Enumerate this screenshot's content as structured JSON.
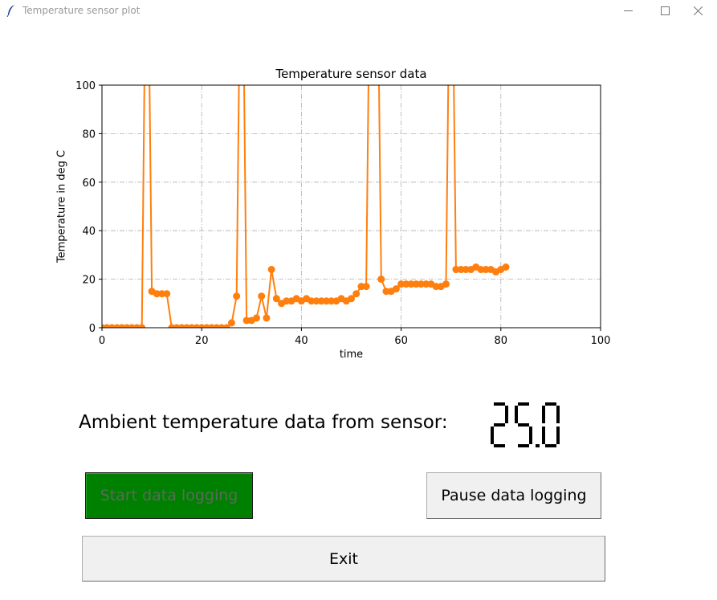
{
  "window": {
    "title": "Temperature sensor plot"
  },
  "chart_data": {
    "type": "line",
    "title": "Temperature sensor data",
    "xlabel": "time",
    "ylabel": "Temperature in deg C",
    "xlim": [
      0,
      100
    ],
    "ylim": [
      0,
      100
    ],
    "xticks": [
      "0",
      "20",
      "40",
      "60",
      "80",
      "100"
    ],
    "yticks": [
      "0",
      "20",
      "40",
      "60",
      "80",
      "100"
    ],
    "grid": true,
    "color": "#ff7f0e",
    "marker": "circle",
    "series": [
      {
        "x": [
          0,
          1,
          2,
          3,
          4,
          5,
          6,
          7,
          8,
          9,
          10,
          11,
          12,
          13,
          14,
          15,
          16,
          17,
          18,
          19,
          20,
          21,
          22,
          23,
          24,
          25,
          26,
          27,
          28,
          29,
          30,
          31,
          32,
          33,
          34,
          35,
          36,
          37,
          38,
          39,
          40,
          41,
          42,
          43,
          44,
          45,
          46,
          47,
          48,
          49,
          50,
          51,
          52,
          53,
          54,
          55,
          56,
          57,
          58,
          59,
          60,
          61,
          62,
          63,
          64,
          65,
          66,
          67,
          68,
          69,
          70,
          71,
          72,
          73,
          74,
          75,
          76,
          77,
          78,
          79,
          80,
          81
        ],
        "values": [
          0,
          0,
          0,
          0,
          0,
          0,
          0,
          0,
          0,
          200,
          15,
          14,
          14,
          14,
          0,
          0,
          0,
          0,
          0,
          0,
          0,
          0,
          0,
          0,
          0,
          0,
          2,
          13,
          200,
          3,
          3,
          4,
          13,
          4,
          24,
          12,
          10,
          11,
          11,
          12,
          11,
          12,
          11,
          11,
          11,
          11,
          11,
          11,
          12,
          11,
          12,
          14,
          17,
          17,
          200,
          200,
          20,
          15,
          15,
          16,
          18,
          18,
          18,
          18,
          18,
          18,
          18,
          17,
          17,
          18,
          200,
          24,
          24,
          24,
          24,
          25,
          24,
          24,
          24,
          23,
          24,
          25
        ]
      }
    ]
  },
  "ambient": {
    "label": "Ambient temperature data from sensor:",
    "value": "25.0"
  },
  "buttons": {
    "start": "Start data logging",
    "pause": "Pause data logging",
    "exit": "Exit"
  }
}
